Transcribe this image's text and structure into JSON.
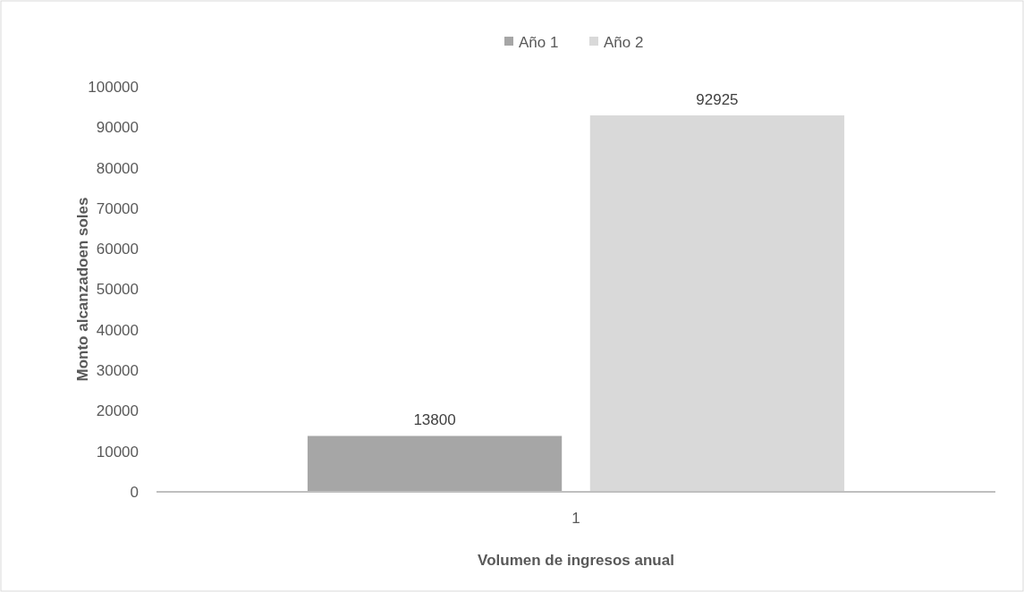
{
  "chart_data": {
    "type": "bar",
    "xlabel": "Volumen de ingresos anual",
    "ylabel": "Monto alcanzadoen soles",
    "categories": [
      "1"
    ],
    "series": [
      {
        "name": "Año 1",
        "color": "#a6a6a6",
        "values": [
          13800
        ]
      },
      {
        "name": "Año 2",
        "color": "#d9d9d9",
        "values": [
          92925
        ]
      }
    ],
    "ylim": [
      0,
      100000
    ],
    "yticks": [
      0,
      10000,
      20000,
      30000,
      40000,
      50000,
      60000,
      70000,
      80000,
      90000,
      100000
    ],
    "grid": false,
    "legend": "top",
    "data_labels": true
  }
}
